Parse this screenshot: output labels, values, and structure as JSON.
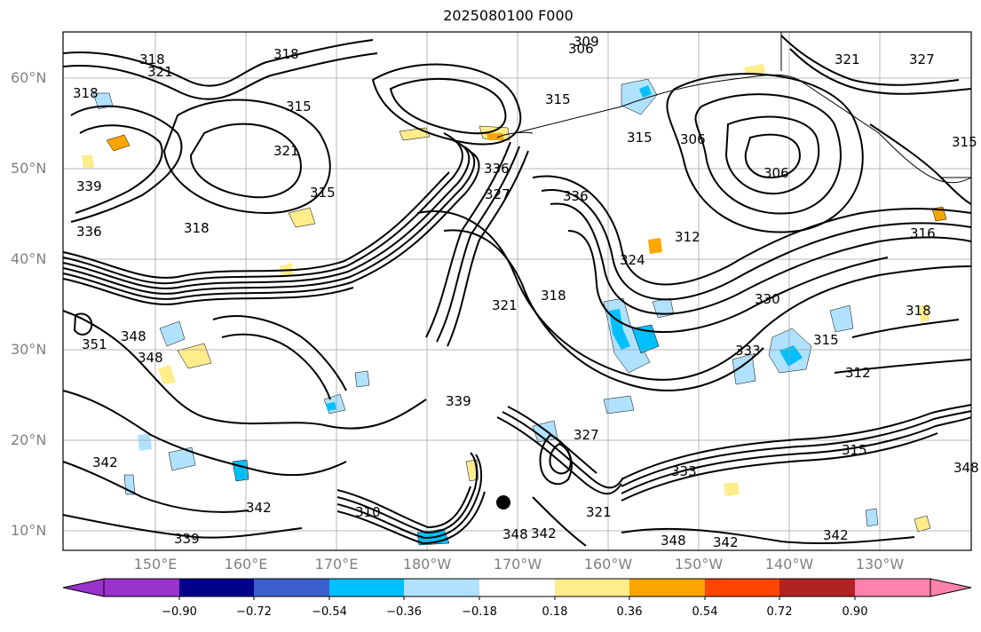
{
  "title": "2025080100 F000",
  "lat_labels": [
    "10°N",
    "20°N",
    "30°N",
    "40°N",
    "50°N",
    "60°N"
  ],
  "lon_labels": [
    "150°E",
    "160°E",
    "170°E",
    "180°W",
    "170°W",
    "160°W",
    "150°W",
    "140°W",
    "130°W"
  ],
  "contour_labels": [
    "318",
    "321",
    "318",
    "315",
    "306",
    "309",
    "315",
    "315",
    "306",
    "306",
    "321",
    "327",
    "318",
    "321",
    "315",
    "318",
    "336",
    "327",
    "336",
    "312",
    "318",
    "324",
    "321",
    "318",
    "316",
    "351",
    "348",
    "339",
    "327",
    "315",
    "312",
    "342",
    "342",
    "333",
    "315",
    "336",
    "339",
    "348",
    "342",
    "348",
    "342",
    "342",
    "333",
    "348",
    "339",
    "348",
    "310",
    "321",
    "330",
    "315"
  ],
  "colorbar": {
    "ticks": [
      "−0.90",
      "−0.72",
      "−0.54",
      "−0.36",
      "−0.18",
      "0.18",
      "0.36",
      "0.54",
      "0.72",
      "0.90"
    ],
    "colors": [
      "#9a32cd",
      "#00008b",
      "#3a5fcd",
      "#00bfff",
      "#b0e2ff",
      "#ffffff",
      "#ffec8b",
      "#ffa500",
      "#ff4500",
      "#b22222",
      "#ff82ab"
    ]
  }
}
